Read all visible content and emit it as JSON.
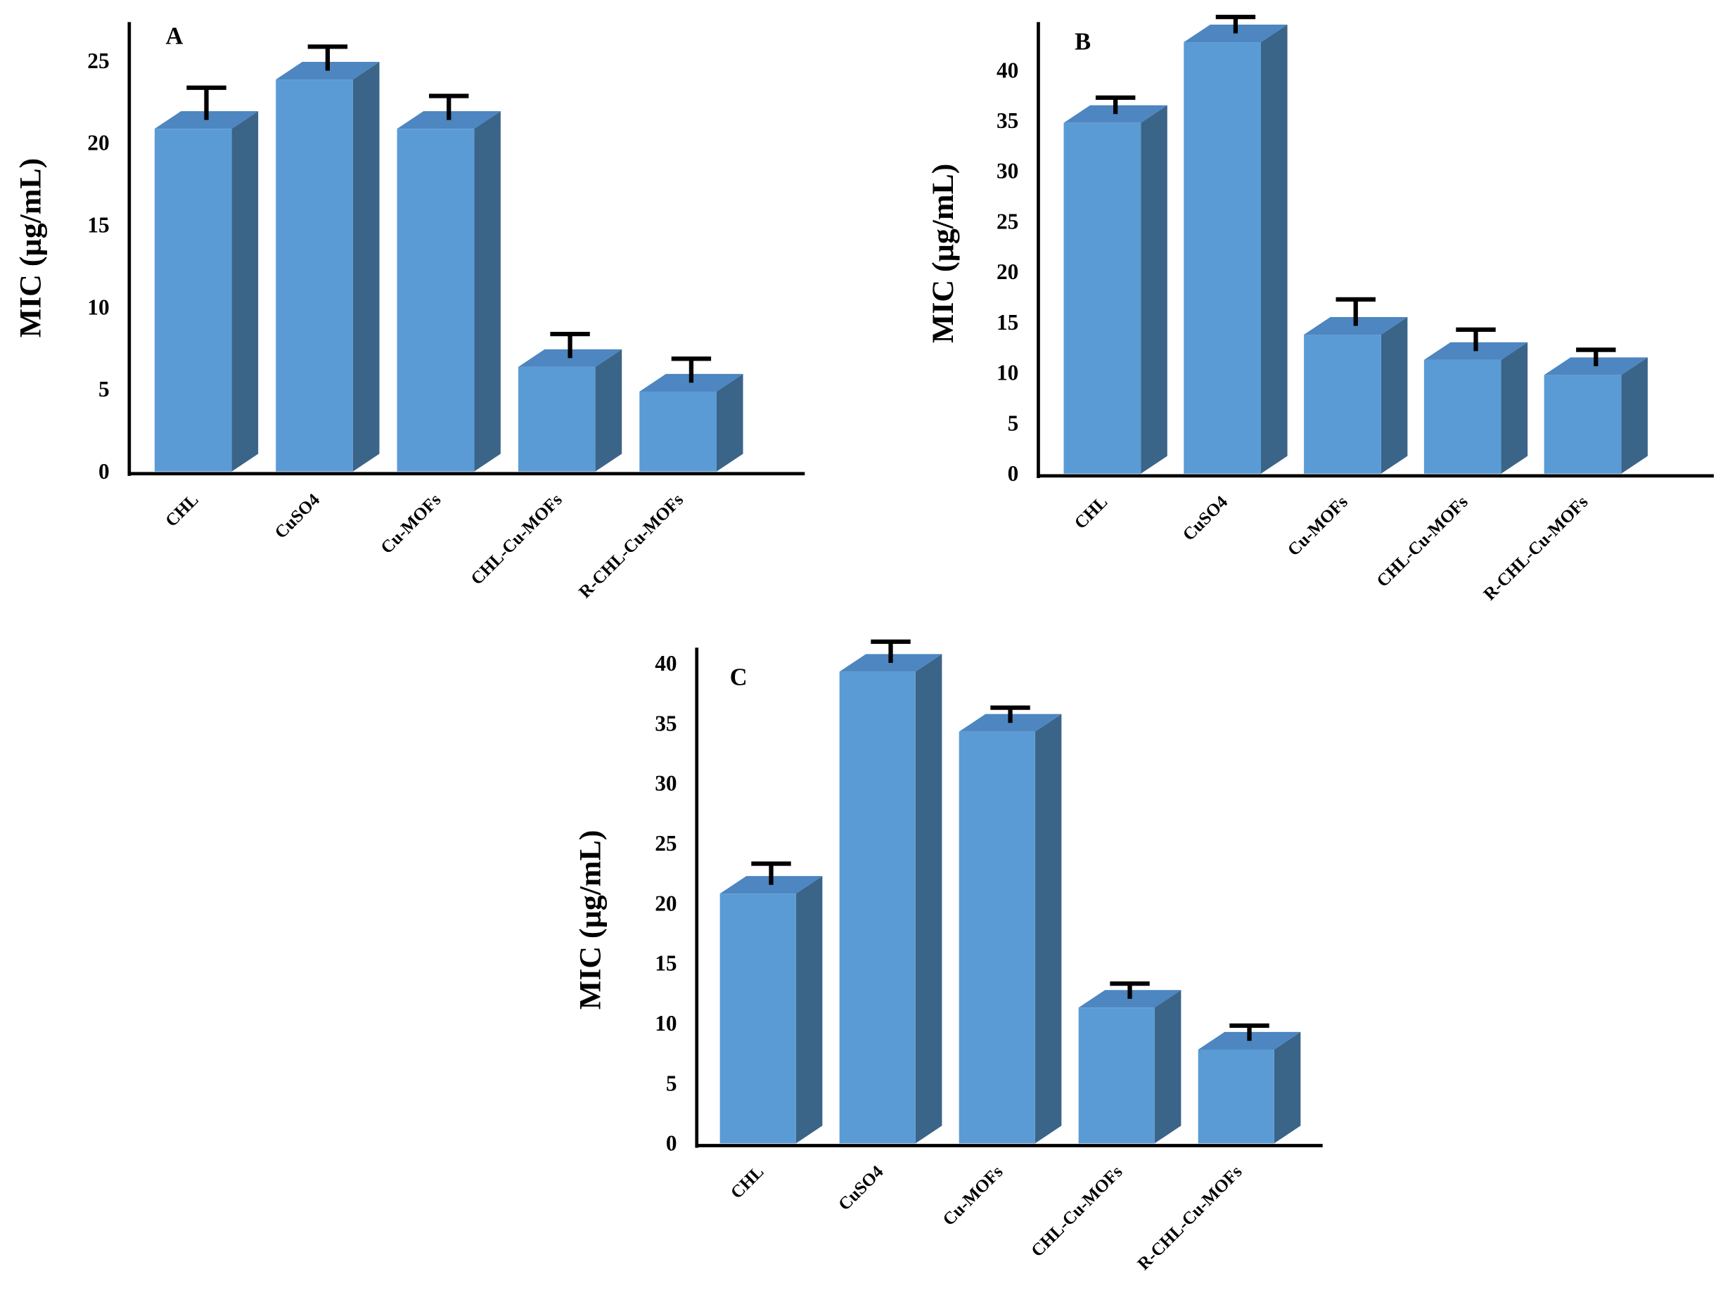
{
  "chart_data": [
    {
      "type": "bar",
      "title": "A",
      "y_label": "MIC (µg/mL)",
      "categories": [
        "CHL",
        "CuSO4",
        "Cu-MOFs",
        "CHL-Cu-MOFs",
        "R-CHL-Cu-MOFs"
      ],
      "values": [
        21,
        24,
        21,
        6.5,
        5
      ],
      "errors": [
        2.5,
        2,
        2,
        2,
        2
      ],
      "color": "#5b9bd5",
      "ylim": [
        0,
        27.5
      ],
      "yticks": [
        0,
        5,
        10,
        15,
        20,
        25
      ]
    },
    {
      "type": "bar",
      "title": "B",
      "y_label": "MIC (µg/mL)",
      "categories": [
        "CHL",
        "CuSO4",
        "Cu-MOFs",
        "CHL-Cu-MOFs",
        "R-CHL-Cu-MOFs"
      ],
      "values": [
        35,
        43,
        14,
        11.5,
        10
      ],
      "errors": [
        2.5,
        2.5,
        3.5,
        3,
        2.5
      ],
      "color": "#5b9bd5",
      "ylim": [
        0,
        45
      ],
      "yticks": [
        0,
        5,
        10,
        15,
        20,
        25,
        30,
        35,
        40
      ]
    },
    {
      "type": "bar",
      "title": "C",
      "y_label": "MIC (µg/mL)",
      "categories": [
        "CHL",
        "CuSO4",
        "Cu-MOFs",
        "CHL-Cu-MOFs",
        "R-CHL-Cu-MOFs"
      ],
      "values": [
        21,
        39.5,
        34.5,
        11.5,
        8
      ],
      "errors": [
        2.5,
        2.5,
        2,
        2,
        2
      ],
      "color": "#5b9bd5",
      "ylim": [
        0,
        41.5
      ],
      "yticks": [
        0,
        5,
        10,
        15,
        20,
        25,
        30,
        35,
        40
      ]
    }
  ]
}
